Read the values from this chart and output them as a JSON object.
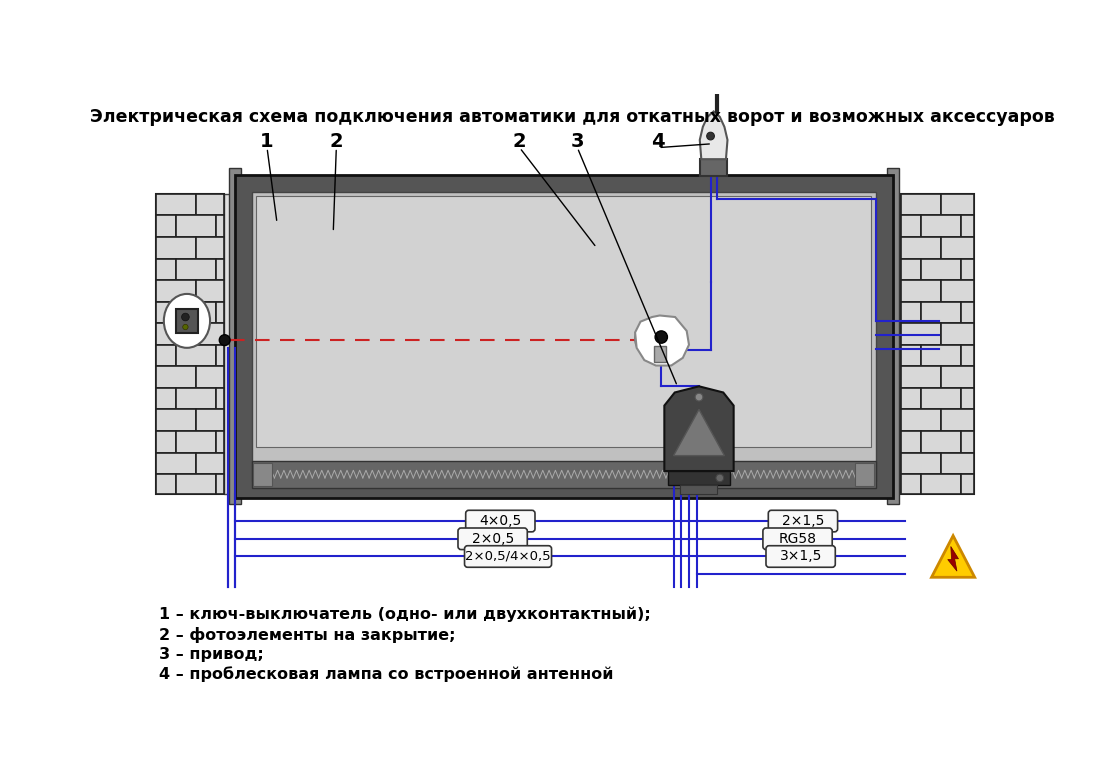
{
  "title": "Электрическая схема подключения автоматики для откатных ворот и возможных аксессуаров",
  "bg_color": "#ffffff",
  "legend": [
    "1 – ключ-выключатель (одно- или двухконтактный);",
    "2 – фотоэлементы на закрытие;",
    "3 – привод;",
    "4 – проблесковая лампа со встроенной антенной"
  ],
  "cable_labels_left": [
    "4×0,5",
    "2×0,5",
    "2×0,5/4×0,5"
  ],
  "cable_labels_right": [
    "2×1,5",
    "RG58",
    "3×1,5"
  ],
  "blue_wire": "#2222cc",
  "red_wire": "#cc2222"
}
